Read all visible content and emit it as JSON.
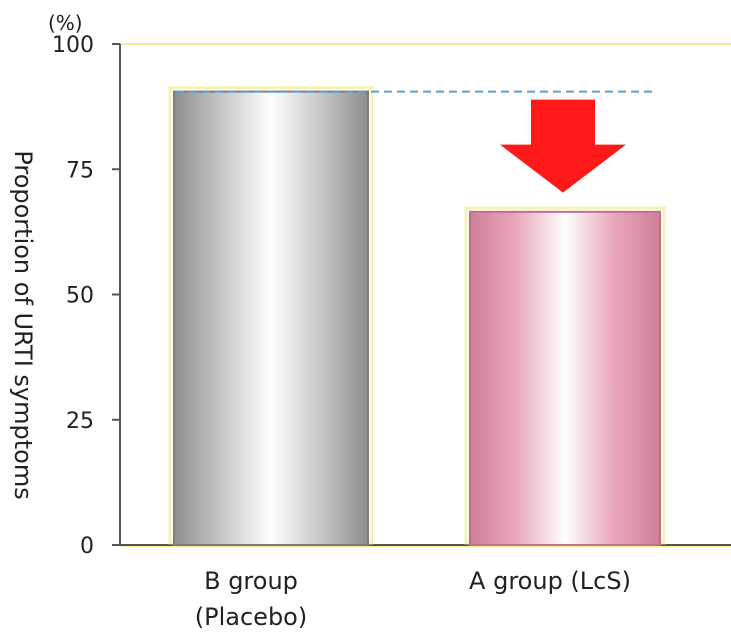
{
  "chart_data": {
    "type": "bar",
    "unit_label": "(%)",
    "ylabel": "Proportion of URTI symptoms",
    "xlabel": "",
    "ylim": [
      0,
      100
    ],
    "yticks": [
      0,
      25,
      50,
      75,
      100
    ],
    "categories": [
      {
        "line1": "B group",
        "line2": "(Placebo)"
      },
      {
        "line1": "A group (LcS)",
        "line2": ""
      }
    ],
    "values": [
      90.5,
      66.5
    ],
    "colors": {
      "placebo_edge": "#8e8e8e",
      "placebo_center": "#ffffff",
      "placebo_mid": "#c9c9c9",
      "lcs_edge": "#d07f98",
      "lcs_center": "#ffffff",
      "lcs_mid": "#e9a9bd",
      "arrow": "#ff1a1a",
      "reference_line": "#5aa0d8",
      "frame": "#f3eb9a",
      "axis": "#555555"
    },
    "annotations": {
      "reference_line_value": 90.5,
      "arrow": "down"
    },
    "grid": false,
    "legend": "none"
  }
}
